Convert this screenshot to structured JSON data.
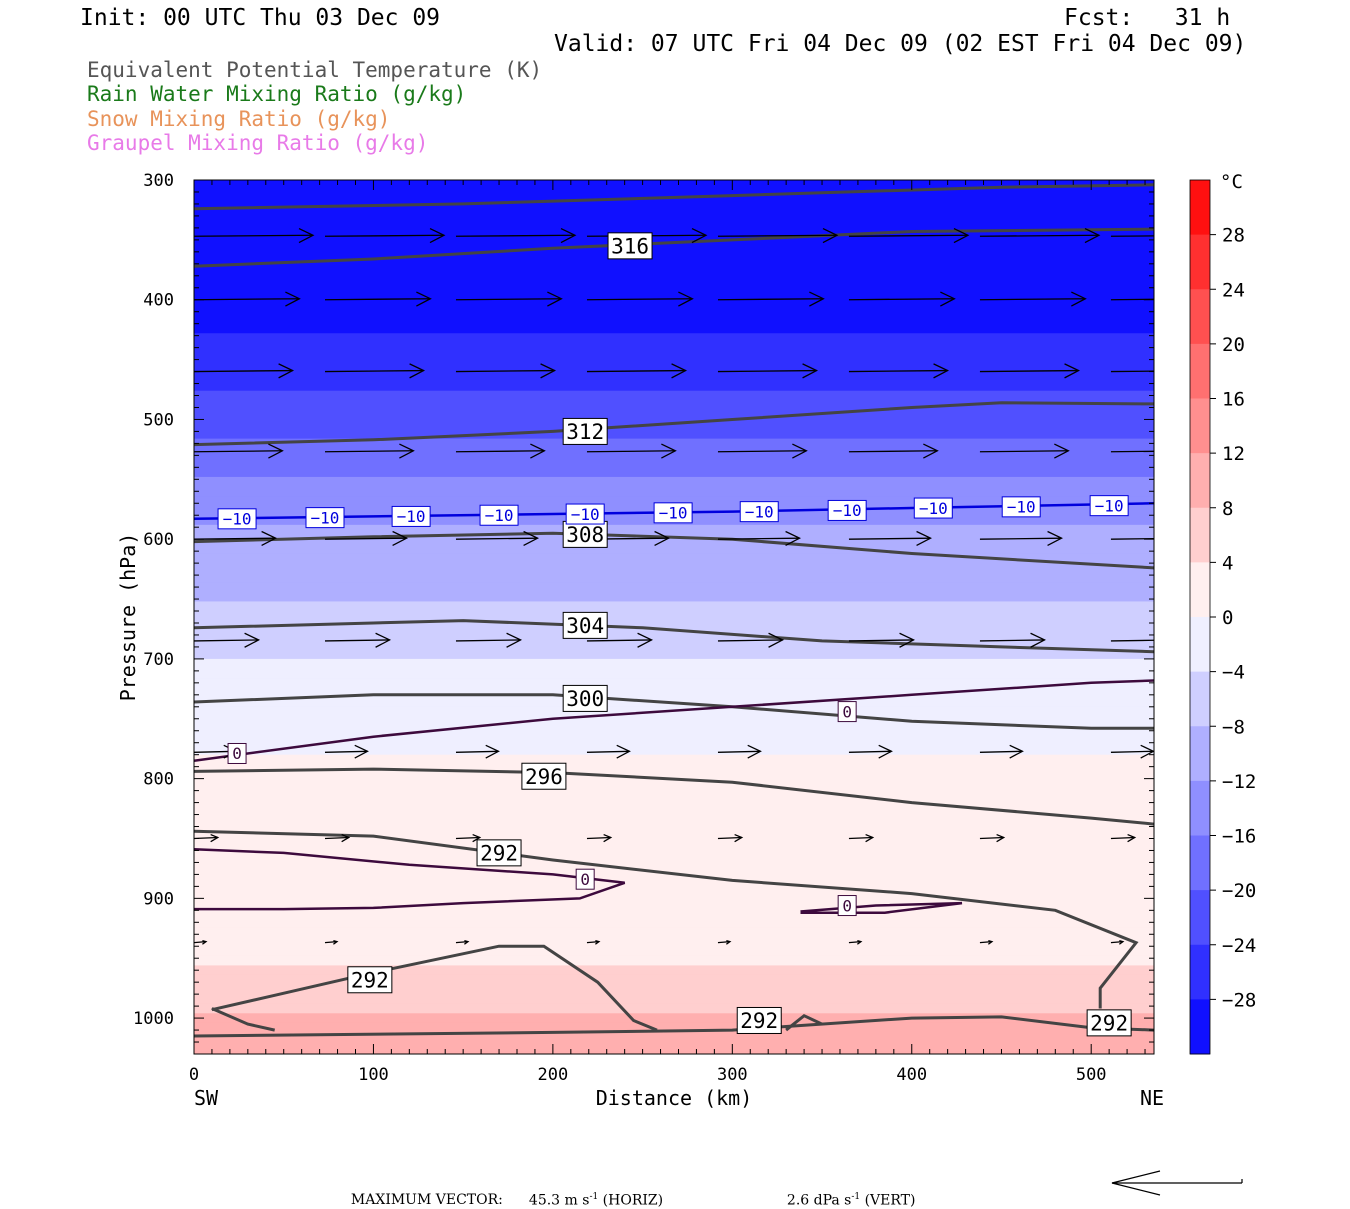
{
  "header": {
    "init": "Init: 00 UTC Thu 03 Dec 09",
    "fcst": "Fcst:   31 h",
    "valid": "Valid: 07 UTC Fri 04 Dec 09 (02 EST Fri 04 Dec 09)"
  },
  "legend": [
    {
      "label": "Equivalent Potential Temperature (K)",
      "color": "#555555"
    },
    {
      "label": "Rain Water Mixing Ratio (g/kg)",
      "color": "#1a7a1a"
    },
    {
      "label": "Snow Mixing Ratio (g/kg)",
      "color": "#e8935a"
    },
    {
      "label": "Graupel Mixing Ratio (g/kg)",
      "color": "#e87ae8"
    }
  ],
  "footer": {
    "max_vector_label": "MAXIMUM VECTOR:",
    "horiz_value": "45.3 m s",
    "horiz_exp": "-1",
    "horiz_suffix": " (HORIZ)",
    "vert_value": "2.6 dPa s",
    "vert_exp": "-1",
    "vert_suffix": " (VERT)"
  },
  "chart_data": {
    "type": "cross-section",
    "xlabel": "Distance (km)",
    "ylabel": "Pressure (hPa)",
    "xlim": [
      0,
      535
    ],
    "ylim": [
      1030,
      300
    ],
    "x_ticks": [
      0,
      100,
      200,
      300,
      400,
      500
    ],
    "y_ticks": [
      300,
      400,
      500,
      600,
      700,
      800,
      900,
      1000
    ],
    "left_end_label": "SW",
    "right_end_label": "NE",
    "colorbar": {
      "unit": "°C",
      "range": [
        -32,
        32
      ],
      "step": 4,
      "labels": [
        "28",
        "24",
        "20",
        "16",
        "12",
        "8",
        "4",
        "0",
        "−4",
        "−8",
        "−12",
        "−16",
        "−20",
        "−24",
        "−28"
      ],
      "label_values": [
        28,
        24,
        20,
        16,
        12,
        8,
        4,
        0,
        -4,
        -8,
        -12,
        -16,
        -20,
        -24,
        -28
      ]
    },
    "temperature_field": {
      "profile": [
        {
          "p": 300,
          "t": -32
        },
        {
          "p": 400,
          "t": -30
        },
        {
          "p": 450,
          "t": -26
        },
        {
          "p": 500,
          "t": -21
        },
        {
          "p": 550,
          "t": -15
        },
        {
          "p": 600,
          "t": -11
        },
        {
          "p": 650,
          "t": -8
        },
        {
          "p": 700,
          "t": -4
        },
        {
          "p": 750,
          "t": -1
        },
        {
          "p": 800,
          "t": 1
        },
        {
          "p": 850,
          "t": 2
        },
        {
          "p": 900,
          "t": 1
        },
        {
          "p": 950,
          "t": 4
        },
        {
          "p": 1000,
          "t": 9
        },
        {
          "p": 1030,
          "t": 10
        }
      ]
    },
    "theta_e_contours": [
      {
        "label": "316",
        "points": [
          [
            0,
            372
          ],
          [
            100,
            366
          ],
          [
            200,
            357
          ],
          [
            300,
            350
          ],
          [
            400,
            343
          ],
          [
            535,
            341
          ]
        ],
        "label_at": [
          243,
          355
        ]
      },
      {
        "label": "",
        "points": [
          [
            0,
            324
          ],
          [
            150,
            320
          ],
          [
            300,
            313
          ],
          [
            450,
            306
          ],
          [
            535,
            304
          ]
        ]
      },
      {
        "label": "312",
        "points": [
          [
            0,
            521
          ],
          [
            100,
            517
          ],
          [
            200,
            510
          ],
          [
            300,
            500
          ],
          [
            400,
            490
          ],
          [
            450,
            486
          ],
          [
            535,
            487
          ]
        ],
        "label_at": [
          218,
          510
        ]
      },
      {
        "label": "308",
        "points": [
          [
            0,
            602
          ],
          [
            100,
            598
          ],
          [
            200,
            595
          ],
          [
            300,
            600
          ],
          [
            400,
            612
          ],
          [
            535,
            624
          ]
        ],
        "label_at": [
          218,
          596
        ]
      },
      {
        "label": "304",
        "points": [
          [
            0,
            674
          ],
          [
            100,
            670
          ],
          [
            150,
            668
          ],
          [
            250,
            674
          ],
          [
            350,
            685
          ],
          [
            450,
            690
          ],
          [
            535,
            694
          ]
        ],
        "label_at": [
          218,
          672
        ]
      },
      {
        "label": "300",
        "points": [
          [
            0,
            736
          ],
          [
            100,
            730
          ],
          [
            200,
            730
          ],
          [
            300,
            740
          ],
          [
            400,
            752
          ],
          [
            500,
            758
          ],
          [
            535,
            758
          ]
        ],
        "label_at": [
          218,
          733
        ]
      },
      {
        "label": "296",
        "points": [
          [
            0,
            794
          ],
          [
            100,
            792
          ],
          [
            200,
            795
          ],
          [
            300,
            803
          ],
          [
            400,
            820
          ],
          [
            500,
            833
          ],
          [
            535,
            838
          ]
        ],
        "label_at": [
          195,
          798
        ]
      },
      {
        "label": "292",
        "points": [
          [
            0,
            844
          ],
          [
            100,
            848
          ],
          [
            200,
            868
          ],
          [
            300,
            885
          ],
          [
            400,
            896
          ],
          [
            480,
            910
          ],
          [
            525,
            937
          ],
          [
            505,
            975
          ],
          [
            505,
            992
          ]
        ],
        "label_at": [
          170,
          862
        ]
      },
      {
        "label": "292",
        "points": [
          [
            10,
            993
          ],
          [
            45,
            981
          ],
          [
            100,
            962
          ],
          [
            170,
            940
          ],
          [
            195,
            940
          ],
          [
            225,
            970
          ],
          [
            245,
            1002
          ],
          [
            258,
            1010
          ]
        ],
        "label_at": [
          98,
          968
        ]
      },
      {
        "label": "292",
        "points": [
          [
            10,
            992
          ],
          [
            30,
            1005
          ],
          [
            45,
            1010
          ]
        ],
        "label_at": [
          315,
          1002
        ]
      },
      {
        "label": "292",
        "points": [
          [
            330,
            1010
          ],
          [
            340,
            998
          ],
          [
            350,
            1005
          ]
        ],
        "label_at": [
          510,
          1004
        ]
      },
      {
        "label": "",
        "points": [
          [
            0,
            1015
          ],
          [
            200,
            1012
          ],
          [
            300,
            1010
          ],
          [
            400,
            1000
          ],
          [
            450,
            999
          ],
          [
            500,
            1008
          ],
          [
            535,
            1010
          ]
        ]
      }
    ],
    "temperature_isotherms": [
      {
        "label": "−10",
        "color": "#0000dd",
        "points": [
          [
            0,
            583
          ],
          [
            100,
            581
          ],
          [
            200,
            579
          ],
          [
            300,
            577
          ],
          [
            400,
            574
          ],
          [
            535,
            570
          ]
        ],
        "label_positions": [
          [
            24,
            583
          ],
          [
            73,
            582
          ],
          [
            121,
            581
          ],
          [
            170,
            580
          ],
          [
            218,
            579
          ],
          [
            267,
            578
          ],
          [
            315,
            577
          ],
          [
            364,
            576
          ],
          [
            412,
            574
          ],
          [
            461,
            573
          ],
          [
            510,
            572
          ]
        ]
      },
      {
        "label": "0",
        "color": "#3d0a3d",
        "points": [
          [
            0,
            785
          ],
          [
            100,
            765
          ],
          [
            200,
            750
          ],
          [
            300,
            740
          ],
          [
            400,
            730
          ],
          [
            500,
            720
          ],
          [
            535,
            718
          ]
        ],
        "label_positions": [
          [
            24,
            779
          ],
          [
            364,
            744
          ]
        ]
      },
      {
        "label": "0",
        "color": "#3d0a3d",
        "points": [
          [
            0,
            859
          ],
          [
            50,
            862
          ],
          [
            120,
            872
          ],
          [
            200,
            880
          ],
          [
            240,
            887
          ],
          [
            215,
            900
          ],
          [
            150,
            904
          ],
          [
            100,
            908
          ],
          [
            50,
            909
          ],
          [
            0,
            909
          ]
        ],
        "label_positions": [
          [
            218,
            884
          ]
        ]
      },
      {
        "label": "0",
        "color": "#3d0a3d",
        "points": [
          [
            338,
            911
          ],
          [
            380,
            906
          ],
          [
            428,
            904
          ],
          [
            385,
            912
          ],
          [
            338,
            912
          ]
        ],
        "label_positions": [
          [
            364,
            906
          ]
        ]
      }
    ],
    "wind_rows": [
      {
        "p": 347,
        "len": 70
      },
      {
        "p": 400,
        "len": 62
      },
      {
        "p": 460,
        "len": 58
      },
      {
        "p": 527,
        "len": 52
      },
      {
        "p": 600,
        "len": 48
      },
      {
        "p": 685,
        "len": 38
      },
      {
        "p": 778,
        "len": 25
      },
      {
        "p": 850,
        "len": 14
      },
      {
        "p": 937,
        "len": 5
      }
    ]
  }
}
